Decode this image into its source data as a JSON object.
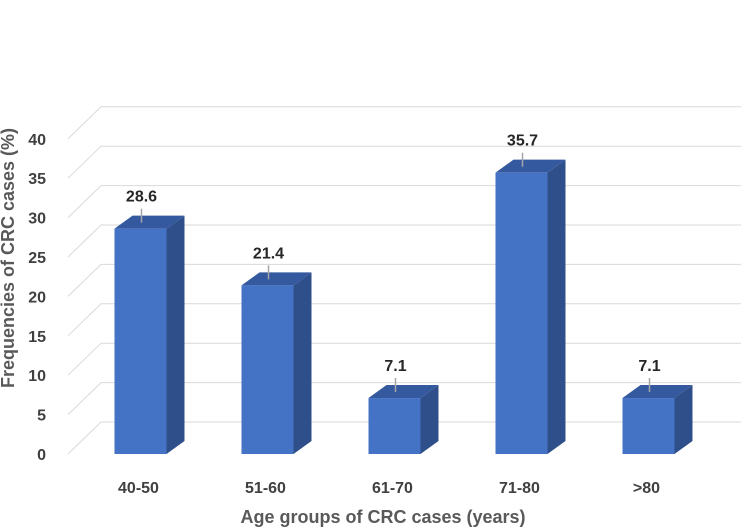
{
  "chart_data": {
    "type": "bar",
    "title": "",
    "categories": [
      "40-50",
      "51-60",
      "61-70",
      "71-80",
      ">80"
    ],
    "values": [
      28.6,
      21.4,
      7.1,
      35.7,
      7.1
    ],
    "data_labels": [
      "28.6",
      "21.4",
      "7.1",
      "35.7",
      "7.1"
    ],
    "xlabel": "Age groups of CRC cases (years)",
    "ylabel": "Frequencies of CRC cases (%)",
    "ylim": [
      0,
      40
    ],
    "yticks": [
      0,
      5,
      10,
      15,
      20,
      25,
      30,
      35,
      40
    ],
    "grid": true,
    "style": "3d-column",
    "colors": {
      "front": "#4472c4",
      "side": "#2f4f8a",
      "top": "#35599e"
    }
  }
}
